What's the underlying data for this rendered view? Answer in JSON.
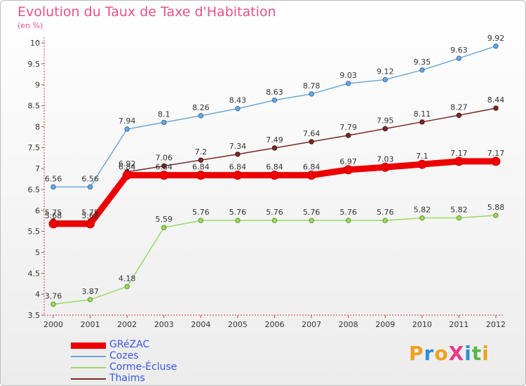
{
  "title": "Evolution du Taux de Taxe d'Habitation",
  "subtitle": "(en %)",
  "logo": {
    "text": "ProXiti",
    "colors": [
      "#f0a020",
      "#2a8fd8",
      "#f0a020",
      "#e83a8a",
      "#2a8fd8",
      "#58b848",
      "#f0a020"
    ]
  },
  "chart_data": {
    "type": "line",
    "title": "Evolution du Taux de Taxe d'Habitation",
    "subtitle": "(en %)",
    "xlabel": "",
    "ylabel": "",
    "x": [
      "2000",
      "2001",
      "2002",
      "2003",
      "2004",
      "2005",
      "2006",
      "2007",
      "2008",
      "2009",
      "2010",
      "2011",
      "2012"
    ],
    "ylim": [
      3.5,
      10
    ],
    "yticks": [
      "3.5",
      "4",
      "4.5",
      "5",
      "5.5",
      "6",
      "6.5",
      "7",
      "7.5",
      "8",
      "8.5",
      "9",
      "9.5",
      "10"
    ],
    "grid": false,
    "legend_position": "bottom-left",
    "series": [
      {
        "name": "GRéZAC",
        "color": "#ee0000",
        "width": 9,
        "values": [
          5.68,
          5.68,
          6.84,
          6.84,
          6.84,
          6.84,
          6.84,
          6.84,
          6.97,
          7.03,
          7.1,
          7.17,
          7.17
        ],
        "labels": [
          "5.68",
          "5.68",
          "6.84",
          "6.84",
          "6.84",
          "6.84",
          "6.84",
          "6.84",
          "6.97",
          "7.03",
          "7.1",
          "7.17",
          "7.17"
        ]
      },
      {
        "name": "Cozes",
        "color": "#6fa8d8",
        "width": 1.5,
        "values": [
          6.56,
          6.56,
          7.94,
          8.1,
          8.26,
          8.43,
          8.63,
          8.78,
          9.03,
          9.12,
          9.35,
          9.63,
          9.92
        ],
        "labels": [
          "6.56",
          "6.56",
          "7.94",
          "8.1",
          "8.26",
          "8.43",
          "8.63",
          "8.78",
          "9.03",
          "9.12",
          "9.35",
          "9.63",
          "9.92"
        ]
      },
      {
        "name": "Corme-Écluse",
        "color": "#9bd865",
        "width": 1.5,
        "values": [
          3.76,
          3.87,
          4.18,
          5.59,
          5.76,
          5.76,
          5.76,
          5.76,
          5.76,
          5.76,
          5.82,
          5.82,
          5.88
        ],
        "labels": [
          "3.76",
          "3.87",
          "4.18",
          "5.59",
          "5.76",
          "5.76",
          "5.76",
          "5.76",
          "5.76",
          "5.76",
          "5.82",
          "5.82",
          "5.88"
        ]
      },
      {
        "name": "Thaims",
        "color": "#7a2a2a",
        "width": 1.5,
        "values": [
          5.75,
          5.75,
          6.92,
          7.06,
          7.2,
          7.34,
          7.49,
          7.64,
          7.79,
          7.95,
          8.11,
          8.27,
          8.44
        ],
        "labels": [
          "5.75",
          "5.75",
          "6.92",
          "7.06",
          "7.2",
          "7.34",
          "7.49",
          "7.64",
          "7.79",
          "7.95",
          "8.11",
          "8.27",
          "8.44"
        ]
      }
    ]
  }
}
